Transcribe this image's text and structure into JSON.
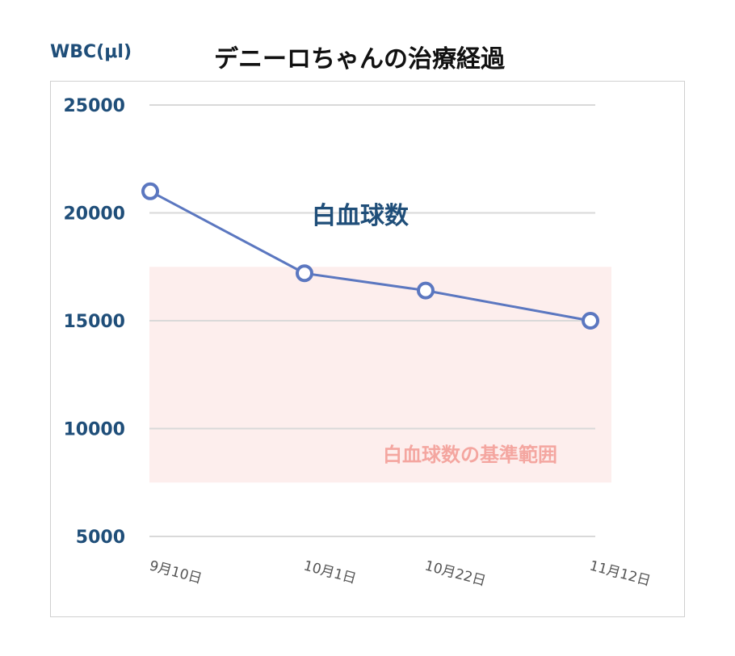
{
  "chart_data": {
    "type": "line",
    "title": "デニーロちゃんの治療経過",
    "ylabel": "WBC(μl)",
    "xlabel": "",
    "categories": [
      "9月10日",
      "10月1日",
      "10月22日",
      "11月12日"
    ],
    "series": [
      {
        "name": "白血球数",
        "values": [
          21000,
          17200,
          16400,
          15000
        ]
      }
    ],
    "ylim": [
      5000,
      25000
    ],
    "yticks": [
      25000,
      20000,
      15000,
      10000,
      5000
    ],
    "reference_band": {
      "label": "白血球数の基準範囲",
      "range": [
        7500,
        17500
      ]
    },
    "grid": true,
    "colors": {
      "line": "#5b77c0",
      "band": "#fdeeed",
      "axis_text": "#1f4e79",
      "band_text": "#f4a6a0"
    }
  }
}
